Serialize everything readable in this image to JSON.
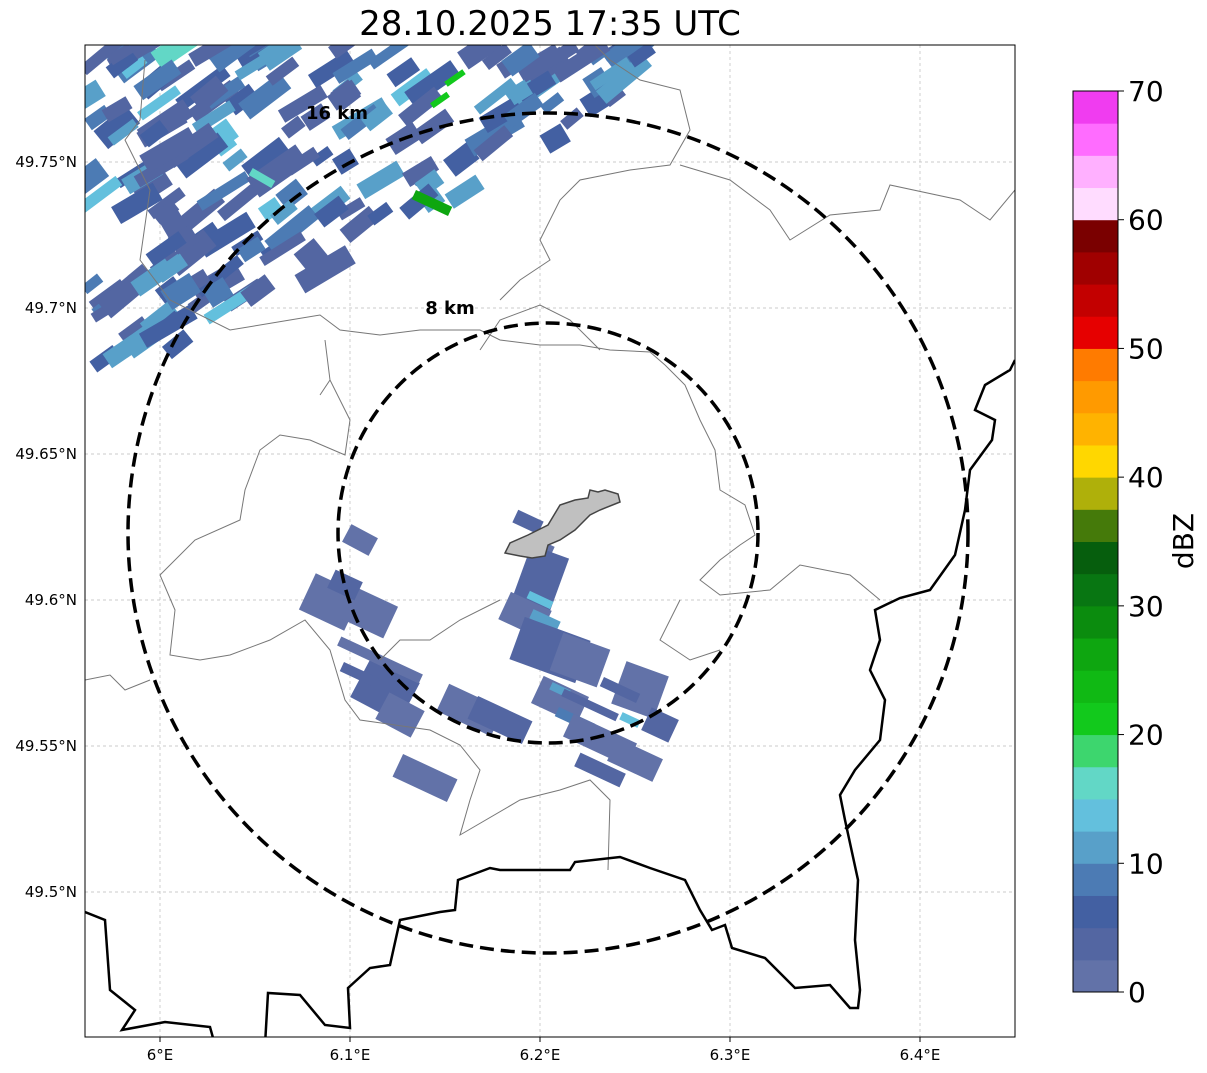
{
  "title": "28.10.2025 17:35 UTC",
  "map": {
    "lon_ticks": [
      "6°E",
      "6.1°E",
      "6.2°E",
      "6.3°E",
      "6.4°E"
    ],
    "lat_ticks": [
      "49.75°N",
      "49.7°N",
      "49.65°N",
      "49.6°N",
      "49.55°N",
      "49.5°N"
    ],
    "rings": [
      {
        "label": "8 km",
        "radius_km": 8
      },
      {
        "label": "16 km",
        "radius_km": 16
      }
    ]
  },
  "colorbar": {
    "label": "dBZ",
    "ticks": [
      "0",
      "10",
      "20",
      "30",
      "40",
      "50",
      "60",
      "70"
    ],
    "range": [
      0,
      70
    ],
    "step": 2.5,
    "colors": [
      "#6272a8",
      "#5366a2",
      "#4360a2",
      "#4c7bb4",
      "#58a0c9",
      "#63c0dd",
      "#62d7c6",
      "#3dd66e",
      "#12c91c",
      "#10b914",
      "#0ea610",
      "#0b8c0e",
      "#087612",
      "#065e0d",
      "#457a0a",
      "#afb00a",
      "#ffd700",
      "#ffb300",
      "#ff9a00",
      "#ff7b00",
      "#e60000",
      "#c30000",
      "#a00000",
      "#7a0000",
      "#ffdcff",
      "#ffb0ff",
      "#ff6cff",
      "#f03cf0"
    ]
  }
}
